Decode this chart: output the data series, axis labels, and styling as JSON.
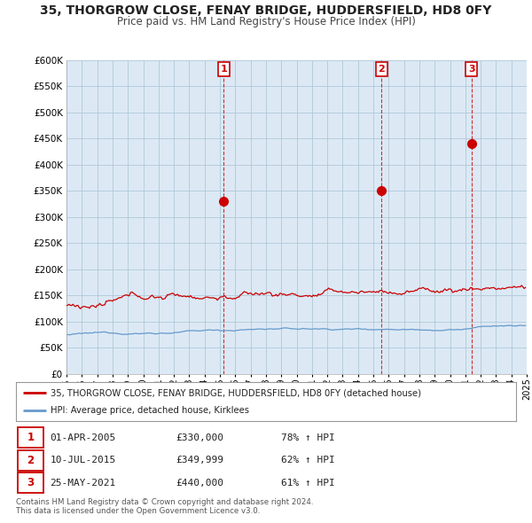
{
  "title": "35, THORGROW CLOSE, FENAY BRIDGE, HUDDERSFIELD, HD8 0FY",
  "subtitle": "Price paid vs. HM Land Registry's House Price Index (HPI)",
  "ylabel_max": 600000,
  "ylabel_min": 0,
  "ylabel_step": 50000,
  "x_start_year": 1995,
  "x_end_year": 2025,
  "red_line_color": "#cc0000",
  "blue_line_color": "#6699cc",
  "chart_bg_color": "#dce9f5",
  "purchase_points": [
    {
      "year": 2005.25,
      "price": 330000,
      "label": "1"
    },
    {
      "year": 2015.53,
      "price": 349999,
      "label": "2"
    },
    {
      "year": 2021.4,
      "price": 440000,
      "label": "3"
    }
  ],
  "legend_red_label": "35, THORGROW CLOSE, FENAY BRIDGE, HUDDERSFIELD, HD8 0FY (detached house)",
  "legend_blue_label": "HPI: Average price, detached house, Kirklees",
  "table_rows": [
    {
      "num": "1",
      "date": "01-APR-2005",
      "price": "£330,000",
      "change": "78% ↑ HPI"
    },
    {
      "num": "2",
      "date": "10-JUL-2015",
      "price": "£349,999",
      "change": "62% ↑ HPI"
    },
    {
      "num": "3",
      "date": "25-MAY-2021",
      "price": "£440,000",
      "change": "61% ↑ HPI"
    }
  ],
  "footer": "Contains HM Land Registry data © Crown copyright and database right 2024.\nThis data is licensed under the Open Government Licence v3.0.",
  "background_color": "#ffffff",
  "grid_color": "#b0c8d8"
}
